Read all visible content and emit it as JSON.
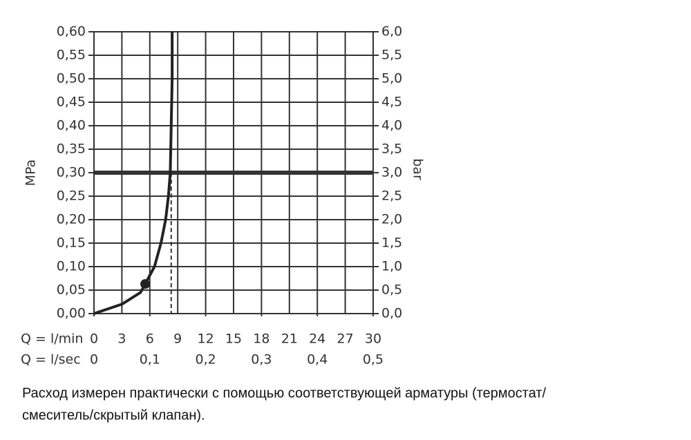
{
  "chart_data": {
    "type": "line",
    "ylabel": "MPa",
    "y2label": "bar",
    "xlabel": "Q = l/min",
    "x2label": "Q = l/sec",
    "x": [
      0,
      3,
      5,
      5.5,
      6.5,
      7.2,
      7.7,
      8,
      8.2,
      8.3,
      8.4,
      8.4
    ],
    "series": [
      {
        "color": "#222222",
        "values": [
          0,
          0.02,
          0.045,
          0.063,
          0.1,
          0.15,
          0.2,
          0.25,
          0.3,
          0.4,
          0.5,
          0.6
        ]
      }
    ],
    "marker": {
      "x": 5.5,
      "y": 0.063
    },
    "reference_line": 0.3,
    "flow_at_reference": 8.3,
    "xlim": [
      0,
      30
    ],
    "xticks": [
      0,
      3,
      6,
      9,
      12,
      15,
      18,
      21,
      24,
      27,
      30
    ],
    "x2lim": [
      0,
      0.5
    ],
    "x2ticks": [
      0,
      {
        "value": 0.1,
        "label": "0,1"
      },
      {
        "value": 0.2,
        "label": "0,2"
      },
      {
        "value": 0.3,
        "label": "0,3"
      },
      {
        "value": 0.4,
        "label": "0,4"
      },
      {
        "value": 0.5,
        "label": "0,5"
      }
    ],
    "ylim": [
      0,
      0.6
    ],
    "yticks": [
      {
        "value": 0,
        "label": "0,00"
      },
      {
        "value": 0.05,
        "label": "0,05"
      },
      {
        "value": 0.1,
        "label": "0,10"
      },
      {
        "value": 0.15,
        "label": "0,15"
      },
      {
        "value": 0.2,
        "label": "0,20"
      },
      {
        "value": 0.25,
        "label": "0,25"
      },
      {
        "value": 0.3,
        "label": "0,30"
      },
      {
        "value": 0.35,
        "label": "0,35"
      },
      {
        "value": 0.4,
        "label": "0,40"
      },
      {
        "value": 0.45,
        "label": "0,45"
      },
      {
        "value": 0.5,
        "label": "0,50"
      },
      {
        "value": 0.55,
        "label": "0,55"
      },
      {
        "value": 0.6,
        "label": "0,60"
      }
    ],
    "y2lim": [
      0,
      6
    ],
    "y2ticks": [
      {
        "value": 0,
        "label": "0,0"
      },
      {
        "value": 0.5,
        "label": "0,5"
      },
      {
        "value": 1,
        "label": "1,0"
      },
      {
        "value": 1.5,
        "label": "1,5"
      },
      {
        "value": 2,
        "label": "2,0"
      },
      {
        "value": 2.5,
        "label": "2,5"
      },
      {
        "value": 3,
        "label": "3,0"
      },
      {
        "value": 3.5,
        "label": "3,5"
      },
      {
        "value": 4,
        "label": "4,0"
      },
      {
        "value": 4.5,
        "label": "4,5"
      },
      {
        "value": 5,
        "label": "5,0"
      },
      {
        "value": 5.5,
        "label": "5,5"
      },
      {
        "value": 6,
        "label": "6,0"
      }
    ],
    "grid": true,
    "note": [
      "Расход измерен практически с помощью соответствующей арматуры (термостат/",
      "смеситель/скрытый клапан)."
    ]
  }
}
